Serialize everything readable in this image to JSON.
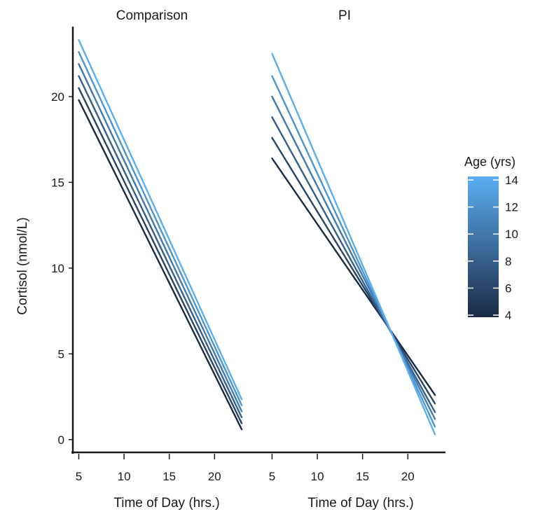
{
  "chart_data": {
    "type": "line",
    "ylabel": "Cortisol (nmol/L)",
    "ylim": [
      -0.5,
      24
    ],
    "yticks": [
      0,
      5,
      10,
      15,
      20
    ],
    "legend": {
      "title": "Age (yrs)",
      "ticks": [
        4,
        6,
        8,
        10,
        12,
        14
      ],
      "range": [
        4,
        14
      ],
      "color_low": "#1b2a44",
      "color_high": "#5aaef2",
      "placement": "right"
    },
    "panels": [
      {
        "title": "Comparison",
        "xlabel": "Time of Day (hrs.)",
        "xlim": [
          4.5,
          24
        ],
        "xticks": [
          5,
          10,
          15,
          20
        ],
        "x": [
          5,
          23
        ],
        "series": [
          {
            "age": 4,
            "values": [
              19.8,
              0.6
            ]
          },
          {
            "age": 6,
            "values": [
              20.5,
              0.95
            ]
          },
          {
            "age": 8,
            "values": [
              21.2,
              1.3
            ]
          },
          {
            "age": 10,
            "values": [
              21.9,
              1.65
            ]
          },
          {
            "age": 12,
            "values": [
              22.6,
              2.0
            ]
          },
          {
            "age": 14,
            "values": [
              23.3,
              2.35
            ]
          }
        ]
      },
      {
        "title": "PI",
        "xlabel": "Time of Day (hrs.)",
        "xlim": [
          4.5,
          24
        ],
        "xticks": [
          5,
          10,
          15,
          20
        ],
        "x": [
          5,
          23
        ],
        "series": [
          {
            "age": 4,
            "values": [
              16.4,
              2.6
            ]
          },
          {
            "age": 6,
            "values": [
              17.6,
              2.1
            ]
          },
          {
            "age": 8,
            "values": [
              18.8,
              1.6
            ]
          },
          {
            "age": 10,
            "values": [
              20.0,
              1.2
            ]
          },
          {
            "age": 12,
            "values": [
              21.2,
              0.75
            ]
          },
          {
            "age": 14,
            "values": [
              22.5,
              0.3
            ]
          }
        ]
      }
    ]
  }
}
